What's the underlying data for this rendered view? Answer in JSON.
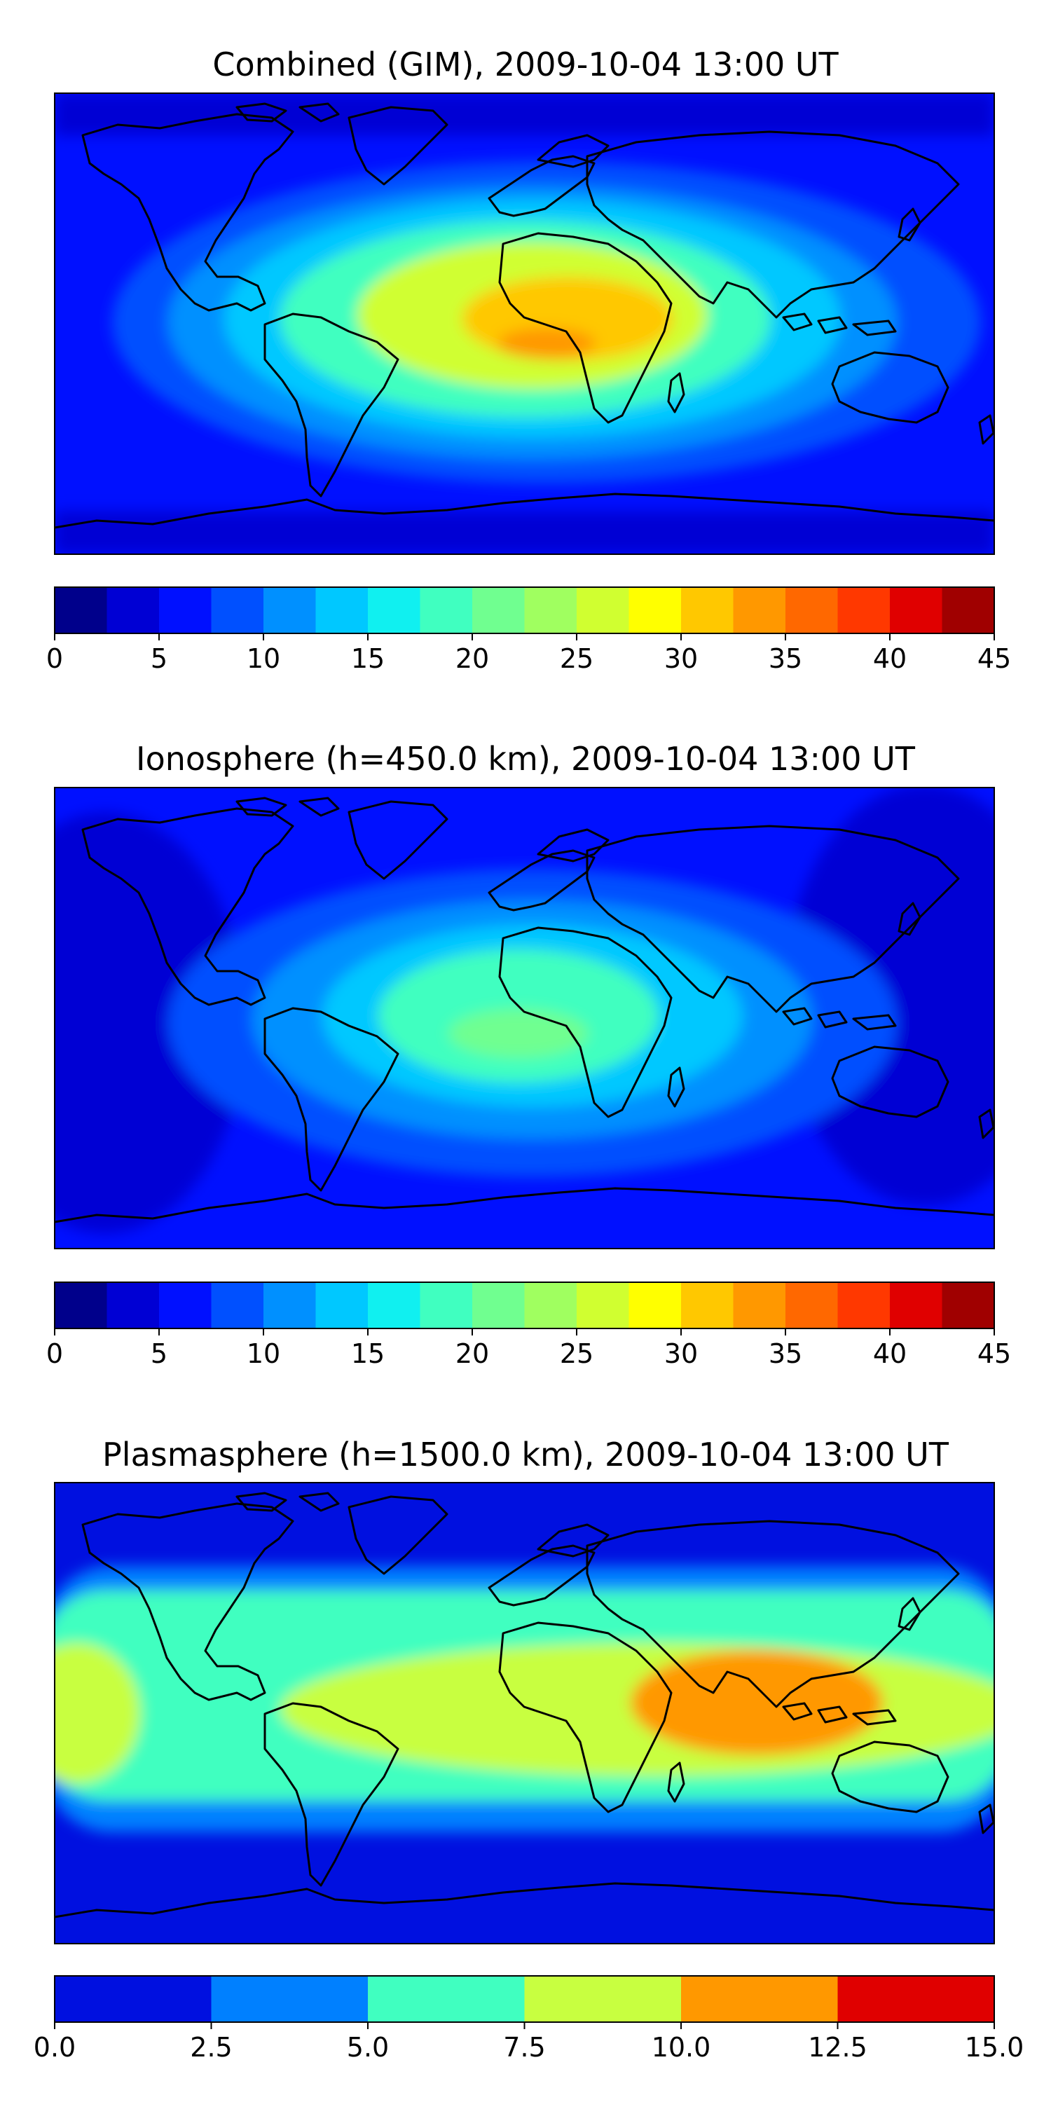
{
  "panels": [
    {
      "title": "Combined (GIM), 2009-10-04 13:00 UT",
      "colorbar": {
        "ticks": [
          "0",
          "5",
          "10",
          "15",
          "20",
          "25",
          "30",
          "35",
          "40",
          "45"
        ],
        "colors": [
          "#00008b",
          "#0000d4",
          "#0010ff",
          "#0050ff",
          "#0090ff",
          "#00c8ff",
          "#10f0f0",
          "#40ffc0",
          "#70ff90",
          "#a0ff60",
          "#d0ff30",
          "#ffff00",
          "#ffc800",
          "#ff9800",
          "#ff6800",
          "#ff3800",
          "#e00000",
          "#a00000"
        ]
      },
      "field_levels": [
        {
          "value": 10,
          "color": "#0050ff"
        },
        {
          "value": 15,
          "color": "#00c8ff"
        },
        {
          "value": 20,
          "color": "#40ffc0"
        },
        {
          "value": 25,
          "color": "#d0ff30"
        },
        {
          "value": 30,
          "color": "#ffc800"
        },
        {
          "value": 32.5,
          "color": "#ff9800"
        }
      ],
      "background_color": "#0010ff"
    },
    {
      "title": "Ionosphere  (h=450.0 km), 2009-10-04 13:00 UT",
      "colorbar": {
        "ticks": [
          "0",
          "5",
          "10",
          "15",
          "20",
          "25",
          "30",
          "35",
          "40",
          "45"
        ],
        "colors": [
          "#00008b",
          "#0000d4",
          "#0010ff",
          "#0050ff",
          "#0090ff",
          "#00c8ff",
          "#10f0f0",
          "#40ffc0",
          "#70ff90",
          "#a0ff60",
          "#d0ff30",
          "#ffff00",
          "#ffc800",
          "#ff9800",
          "#ff6800",
          "#ff3800",
          "#e00000",
          "#a00000"
        ]
      },
      "field_levels": [
        {
          "value": 10,
          "color": "#0050ff"
        },
        {
          "value": 12.5,
          "color": "#0090ff"
        },
        {
          "value": 15,
          "color": "#00c8ff"
        },
        {
          "value": 20,
          "color": "#40ffc0"
        },
        {
          "value": 22.5,
          "color": "#70ff90"
        }
      ],
      "background_color": "#0000d4"
    },
    {
      "title": "Plasmasphere (h=1500.0 km), 2009-10-04 13:00 UT",
      "colorbar": {
        "ticks": [
          "0.0",
          "2.5",
          "5.0",
          "7.5",
          "10.0",
          "12.5",
          "15.0"
        ],
        "colors": [
          "#0010e0",
          "#0080ff",
          "#40ffc0",
          "#c8ff40",
          "#ff9800",
          "#e00000"
        ]
      },
      "field_levels": [
        {
          "value": 2.5,
          "color": "#0080ff"
        },
        {
          "value": 5.0,
          "color": "#40ffc0"
        },
        {
          "value": 7.5,
          "color": "#c8ff40"
        },
        {
          "value": 10.0,
          "color": "#ff9800"
        }
      ],
      "background_color": "#0010e0"
    }
  ]
}
